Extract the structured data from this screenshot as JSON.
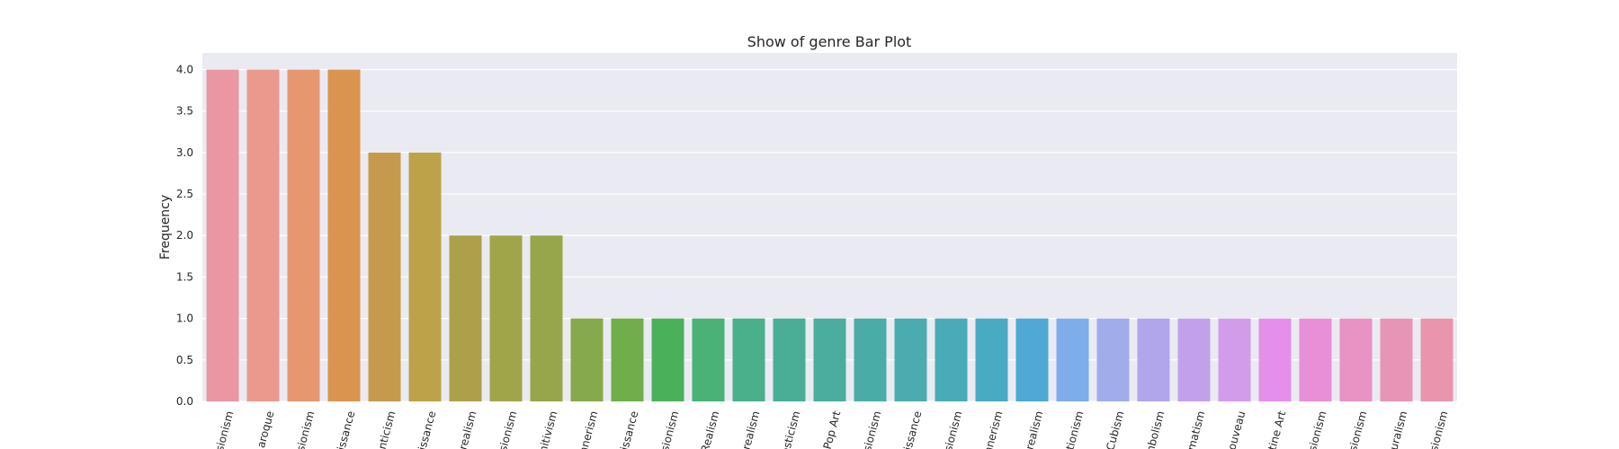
{
  "chart_data": {
    "type": "bar",
    "title": "Show of genre Bar Plot",
    "xlabel": "",
    "ylabel": "Frequency",
    "ylim": [
      0,
      4.2
    ],
    "yticks": [
      0.0,
      0.5,
      1.0,
      1.5,
      2.0,
      2.5,
      3.0,
      3.5,
      4.0
    ],
    "ytick_labels": [
      "0.0",
      "0.5",
      "1.0",
      "1.5",
      "2.0",
      "2.5",
      "3.0",
      "3.5",
      "4.0"
    ],
    "grid": true,
    "categories": [
      "sionism",
      "aroque",
      "sionism",
      "issance",
      "nticism",
      "issance",
      "realism",
      "sionism",
      "mitivism",
      "nnerism",
      "issance",
      "sionism",
      "Realism",
      "realism",
      "esticism",
      "Pop Art",
      "sionism",
      "issance",
      "sionism",
      "nnerism",
      "realism",
      "tionism",
      "Cubism",
      "mbolism",
      "matism",
      "ouveau",
      "ntine Art",
      "sionism",
      "sionism",
      "uralism",
      "sionism"
    ],
    "values": [
      4,
      4,
      4,
      4,
      3,
      3,
      2,
      2,
      2,
      1,
      1,
      1,
      1,
      1,
      1,
      1,
      1,
      1,
      1,
      1,
      1,
      1,
      1,
      1,
      1,
      1,
      1,
      1,
      1,
      1,
      1
    ],
    "colors": [
      "#ea96a3",
      "#ea9a8c",
      "#e6976f",
      "#d9944f",
      "#c59a4c",
      "#bda24a",
      "#aca14a",
      "#a1a54a",
      "#97a64a",
      "#86a94b",
      "#6fae4b",
      "#4ab15a",
      "#4ab177",
      "#4aaf8b",
      "#4aae96",
      "#4aad9e",
      "#4aaca6",
      "#4aacaf",
      "#4aabb8",
      "#4aaac3",
      "#4fa8d6",
      "#7dadea",
      "#a1acea",
      "#b1a5eb",
      "#c3a1ea",
      "#d39ceb",
      "#e48fea",
      "#e98fd8",
      "#e893c4",
      "#e894b6",
      "#e895ad"
    ]
  }
}
